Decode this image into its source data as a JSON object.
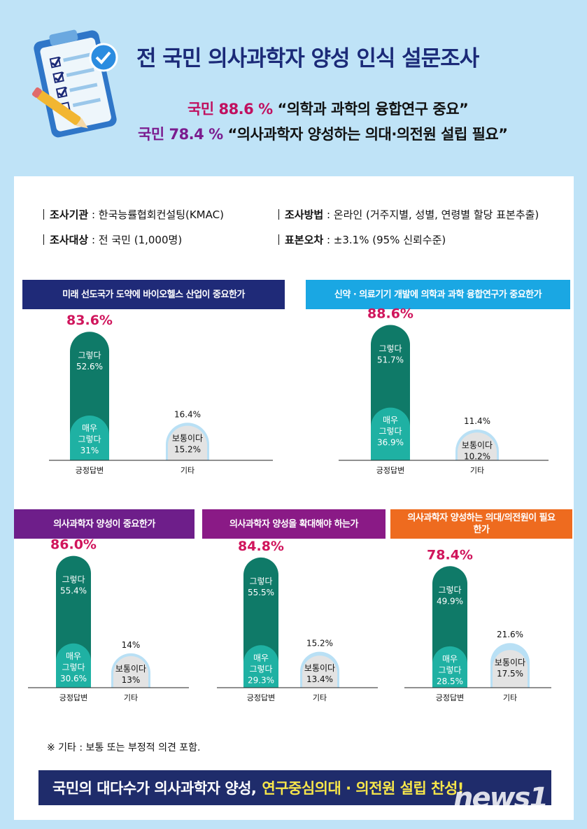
{
  "header": {
    "title": "전 국민 의사과학자 양성 인식 설문조사",
    "line1_pct": "국민 88.6 %",
    "line1_quote": "“의학과 과학의 융합연구 중요”",
    "line2_pct": "국민 78.4 %",
    "line2_quote": "“의사과학자 양성하는 의대·의전원 설립 필요”"
  },
  "info": {
    "org_label": "조사기관",
    "org_value": " : 한국능률협회컨설팅(KMAC)",
    "target_label": "조사대상",
    "target_value": " : 전 국민 (1,000명)",
    "method_label": "조사방법",
    "method_value": " : 온라인 (거주지별, 성별, 연령별 할당 표본추출)",
    "error_label": "표본오차",
    "error_value": " : ±3.1% (95% 신뢰수준)"
  },
  "colors": {
    "navy": "#1f2a78",
    "cyan": "#1aa7e3",
    "purple": "#6e1e8a",
    "magenta": "#8a1a86",
    "orange": "#ee6b1f",
    "dark_green": "#0f7a68",
    "teal": "#1fb1a3",
    "light_gray": "#e3e3e3",
    "light_blue": "#b9e0f5",
    "pink": "#d0155c"
  },
  "chart_data": [
    {
      "type": "bar",
      "title": "미래 선도국가 도약에 바이오헬스 산업이 중요한가",
      "categories": [
        "긍정답변",
        "기타"
      ],
      "total_labels": [
        "83.6%",
        "16.4%"
      ],
      "series": [
        {
          "name": "매우 그렇다",
          "values": [
            31,
            0
          ]
        },
        {
          "name": "그렇다",
          "values": [
            52.6,
            0
          ]
        },
        {
          "name": "보통이다",
          "values": [
            0,
            15.2
          ]
        }
      ],
      "segment_labels": {
        "very": [
          "매우",
          "그렇다",
          "31%"
        ],
        "yes": [
          "그렇다",
          "52.6%"
        ],
        "neutral": [
          "보통이다",
          "15.2%"
        ]
      }
    },
    {
      "type": "bar",
      "title": "신약 · 의료기기 개발에 의학과 과학 융합연구가 중요한가",
      "categories": [
        "긍정답변",
        "기타"
      ],
      "total_labels": [
        "88.6%",
        "11.4%"
      ],
      "series": [
        {
          "name": "매우 그렇다",
          "values": [
            36.9,
            0
          ]
        },
        {
          "name": "그렇다",
          "values": [
            51.7,
            0
          ]
        },
        {
          "name": "보통이다",
          "values": [
            0,
            10.2
          ]
        }
      ],
      "segment_labels": {
        "very": [
          "매우",
          "그렇다",
          "36.9%"
        ],
        "yes": [
          "그렇다",
          "51.7%"
        ],
        "neutral": [
          "보통이다",
          "10.2%"
        ]
      }
    },
    {
      "type": "bar",
      "title": "의사과학자 양성이 중요한가",
      "categories": [
        "긍정답변",
        "기타"
      ],
      "total_labels": [
        "86.0%",
        "14%"
      ],
      "series": [
        {
          "name": "매우 그렇다",
          "values": [
            30.6,
            0
          ]
        },
        {
          "name": "그렇다",
          "values": [
            55.4,
            0
          ]
        },
        {
          "name": "보통이다",
          "values": [
            0,
            13
          ]
        }
      ],
      "segment_labels": {
        "very": [
          "매우",
          "그렇다",
          "30.6%"
        ],
        "yes": [
          "그렇다",
          "55.4%"
        ],
        "neutral": [
          "보통이다",
          "13%"
        ]
      }
    },
    {
      "type": "bar",
      "title": "의사과학자 양성을 확대해야 하는가",
      "categories": [
        "긍정답변",
        "기타"
      ],
      "total_labels": [
        "84.8%",
        "15.2%"
      ],
      "series": [
        {
          "name": "매우 그렇다",
          "values": [
            29.3,
            0
          ]
        },
        {
          "name": "그렇다",
          "values": [
            55.5,
            0
          ]
        },
        {
          "name": "보통이다",
          "values": [
            0,
            13.4
          ]
        }
      ],
      "segment_labels": {
        "very": [
          "매우",
          "그렇다",
          "29.3%"
        ],
        "yes": [
          "그렇다",
          "55.5%"
        ],
        "neutral": [
          "보통이다",
          "13.4%"
        ]
      }
    },
    {
      "type": "bar",
      "title": "의사과학자 양성하는 의대/의전원이 필요한가",
      "categories": [
        "긍정답변",
        "기타"
      ],
      "total_labels": [
        "78.4%",
        "21.6%"
      ],
      "series": [
        {
          "name": "매우 그렇다",
          "values": [
            28.5,
            0
          ]
        },
        {
          "name": "그렇다",
          "values": [
            49.9,
            0
          ]
        },
        {
          "name": "보통이다",
          "values": [
            0,
            17.5
          ]
        }
      ],
      "segment_labels": {
        "very": [
          "매우",
          "그렇다",
          "28.5%"
        ],
        "yes": [
          "그렇다",
          "49.9%"
        ],
        "neutral": [
          "보통이다",
          "17.5%"
        ]
      }
    }
  ],
  "note": "※ 기타 : 보통 또는 부정적 의견 포함.",
  "footer": {
    "text_a": "국민의 대다수가 의사과학자 양성,",
    "text_b": "연구중심의대  · 의전원 설립 찬성!"
  },
  "watermark": "news1"
}
